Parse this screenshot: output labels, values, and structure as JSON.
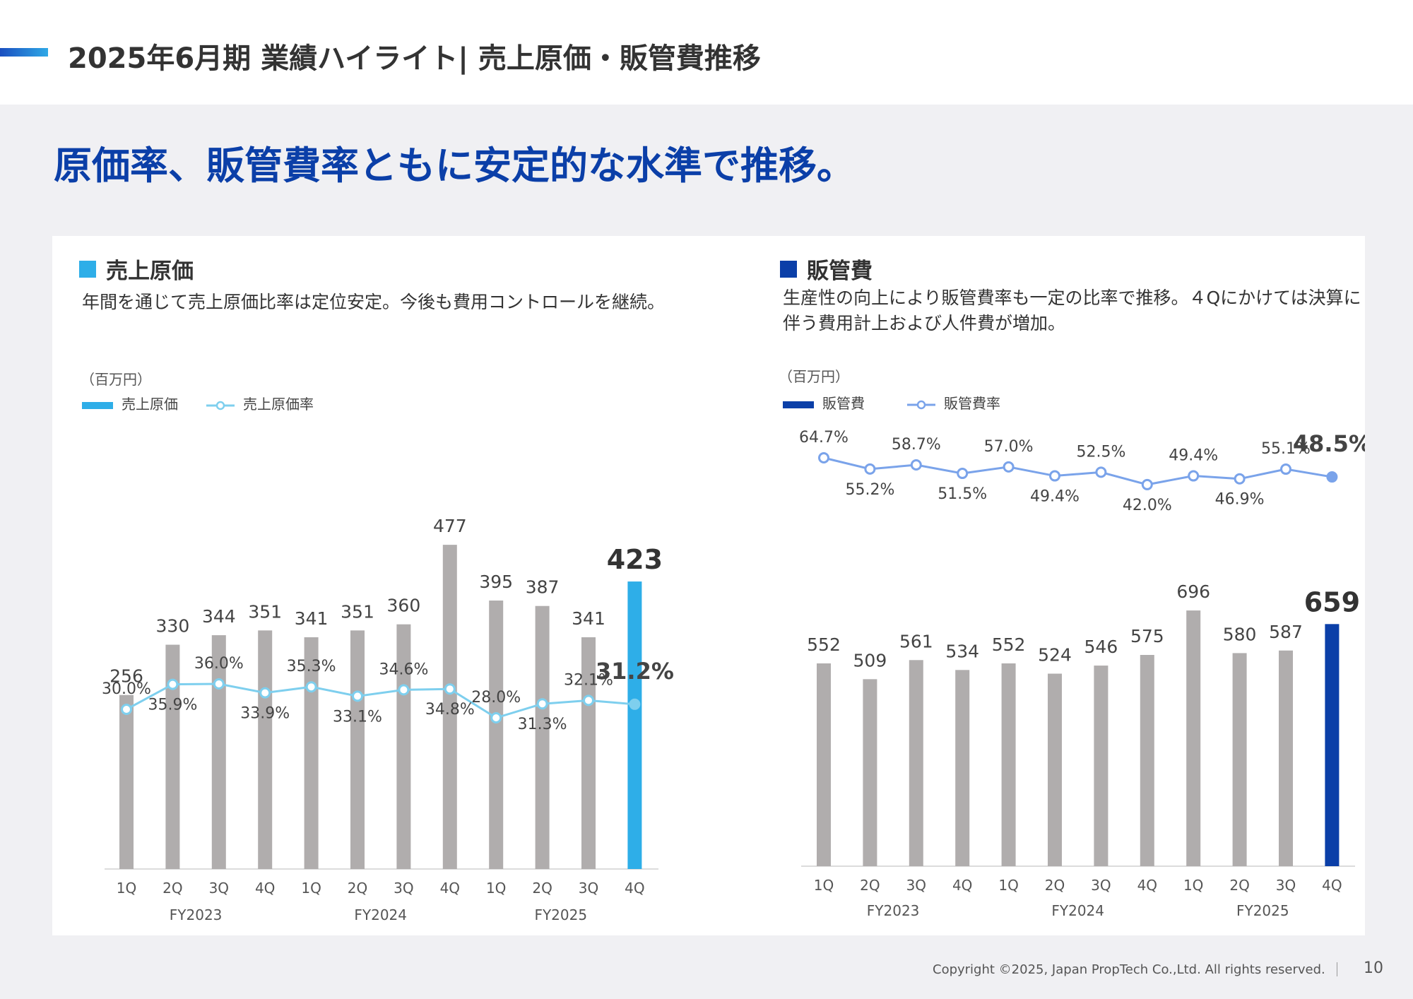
{
  "header": {
    "title": "2025年6月期 業績ハイライト| 売上原価・販管費推移"
  },
  "headline": "原価率、販管費率ともに安定的な水準で推移。",
  "footer": {
    "copyright": "Copyright ©2025, Japan PropTech Co.,Ltd. All rights reserved.",
    "page": "10"
  },
  "colors": {
    "gray_bar": "#b0adad",
    "cost_accent": "#2eaee8",
    "cost_line": "#7ecfee",
    "sga_accent": "#0b3fa8",
    "sga_line": "#7aa3ea",
    "headline": "#0b3fa8"
  },
  "chart_data": [
    {
      "type": "bar",
      "section_title": "売上原価",
      "description": "年間を通じて売上原価比率は定位安定。今後も費用コントロールを継続。",
      "unit": "（百万円）",
      "legend": {
        "bar": "売上原価",
        "line": "売上原価率"
      },
      "categories": [
        "1Q",
        "2Q",
        "3Q",
        "4Q",
        "1Q",
        "2Q",
        "3Q",
        "4Q",
        "1Q",
        "2Q",
        "3Q",
        "4Q"
      ],
      "fiscal_years": [
        "FY2023",
        "FY2024",
        "FY2025"
      ],
      "series": [
        {
          "name": "売上原価",
          "values": [
            256,
            330,
            344,
            351,
            341,
            351,
            360,
            477,
            395,
            387,
            341,
            423
          ]
        },
        {
          "name": "売上原価率",
          "values": [
            30.0,
            35.9,
            36.0,
            33.9,
            35.3,
            33.1,
            34.6,
            34.8,
            28.0,
            31.3,
            32.1,
            31.2
          ],
          "labels": [
            "30.0%",
            "35.9%",
            "36.0%",
            "33.9%",
            "35.3%",
            "33.1%",
            "34.6%",
            "34.8%",
            "28.0%",
            "31.3%",
            "32.1%",
            "31.2%"
          ]
        }
      ],
      "highlight_last": true
    },
    {
      "type": "bar",
      "section_title": "販管費",
      "description": "生産性の向上により販管費率も一定の比率で推移。４Qにかけては決算に伴う費用計上および人件費が増加。",
      "unit": "（百万円）",
      "legend": {
        "bar": "販管費",
        "line": "販管費率"
      },
      "categories": [
        "1Q",
        "2Q",
        "3Q",
        "4Q",
        "1Q",
        "2Q",
        "3Q",
        "4Q",
        "1Q",
        "2Q",
        "3Q",
        "4Q"
      ],
      "fiscal_years": [
        "FY2023",
        "FY2024",
        "FY2025"
      ],
      "series": [
        {
          "name": "販管費",
          "values": [
            552,
            509,
            561,
            534,
            552,
            524,
            546,
            575,
            696,
            580,
            587,
            659
          ]
        },
        {
          "name": "販管費率",
          "values": [
            64.7,
            55.2,
            58.7,
            51.5,
            57.0,
            49.4,
            52.5,
            42.0,
            49.4,
            46.9,
            55.1,
            48.5
          ],
          "labels": [
            "64.7%",
            "55.2%",
            "58.7%",
            "51.5%",
            "57.0%",
            "49.4%",
            "52.5%",
            "42.0%",
            "49.4%",
            "46.9%",
            "55.1%",
            "48.5%"
          ]
        }
      ],
      "highlight_last": true
    }
  ]
}
